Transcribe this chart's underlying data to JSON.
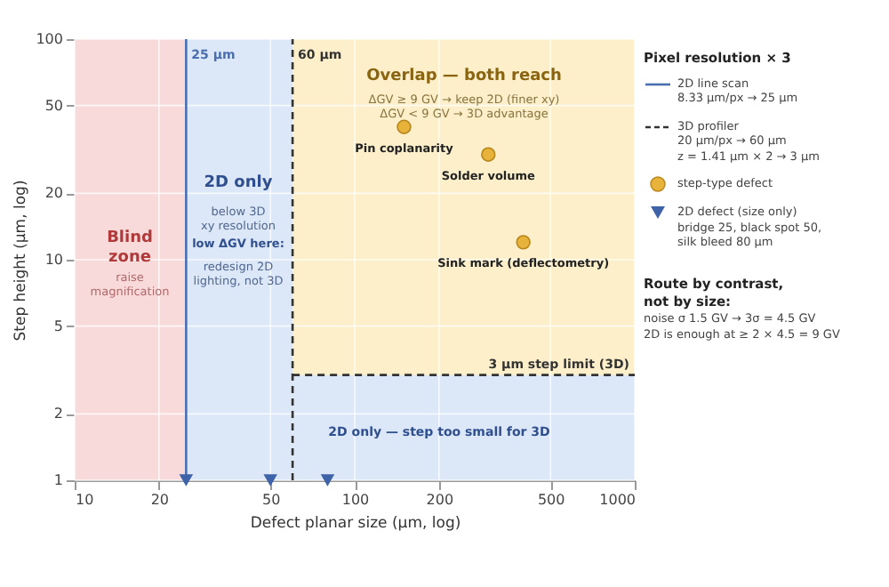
{
  "chart_data": {
    "type": "scatter",
    "xlabel": "Defect planar size (µm, log)",
    "ylabel": "Step height (µm, log)",
    "legend_title": "Pixel resolution × 3",
    "log": "xy",
    "grid": true,
    "legend": "right",
    "marker": "circle",
    "xlim": [
      10,
      1000
    ],
    "xticks": [
      10,
      20,
      50,
      100,
      200,
      500,
      1000
    ],
    "ylim": [
      1,
      100
    ],
    "yticks": [
      1,
      2,
      5,
      10,
      20,
      50,
      100
    ],
    "series": [
      {
        "name": "step-type defect",
        "color": "#e8b33a",
        "x": [
          150,
          300,
          400
        ],
        "values": [
          40,
          30,
          12
        ]
      },
      {
        "name": "2D defect (size only)",
        "color": "#3f63a8",
        "marker": "triangle",
        "x": [
          25,
          50,
          80
        ],
        "values": [
          1,
          1,
          1
        ]
      }
    ],
    "bands": [
      {
        "axis": "x",
        "from": 10,
        "to": 25,
        "color": "#f9dadb"
      },
      {
        "axis": "x",
        "from": 25,
        "to": 60,
        "color": "#dce7f7"
      },
      {
        "axis": "x",
        "from": 60,
        "to": 1000,
        "color": "#fcefc9"
      },
      {
        "axis": "y",
        "from": 1,
        "to": 3,
        "color": "#dce7f7"
      }
    ],
    "ref_lines": [
      {
        "axis": "x",
        "value": 25,
        "label": "25 µm",
        "color": "#4a6fb0",
        "line_style": "solid"
      },
      {
        "axis": "x",
        "value": 60,
        "label": "60 µm",
        "color": "#333333",
        "line_style": "dashed"
      },
      {
        "axis": "y",
        "value": 3,
        "label": "3 µm step limit (3D)",
        "color": "#333333",
        "line_style": "dashed"
      }
    ],
    "annotations": [
      "Blind\nzone",
      "raise\nmagnification",
      "2D only",
      "below 3D\nxy resolution",
      "low ΔGV here:",
      "redesign 2D\nlighting, not 3D",
      "Overlap — both reach",
      "ΔGV ≥ 9 GV → keep 2D (finer xy)\nΔGV < 9 GV → 3D advantage",
      {
        "text": "Pin coplanarity",
        "x": 150,
        "y": 40
      },
      {
        "text": "Solder volume",
        "x": 300,
        "y": 30
      },
      {
        "text": "Sink mark (deflectometry)",
        "x": 400,
        "y": 12
      },
      "2D only — step too small for 3D",
      "2D line scan\n8.33 µm/px → 25 µm",
      "3D profiler\n20 µm/px → 60 µm\nz = 1.41 µm × 2 → 3 µm",
      "bridge 25, black spot 50,\nsilk bleed 80 µm",
      "Route by contrast,\nnot by size:",
      "noise σ 1.5 GV → 3σ = 4.5 GV\n2D is enough at ≥ 2 × 4.5 = 9 GV"
    ]
  }
}
